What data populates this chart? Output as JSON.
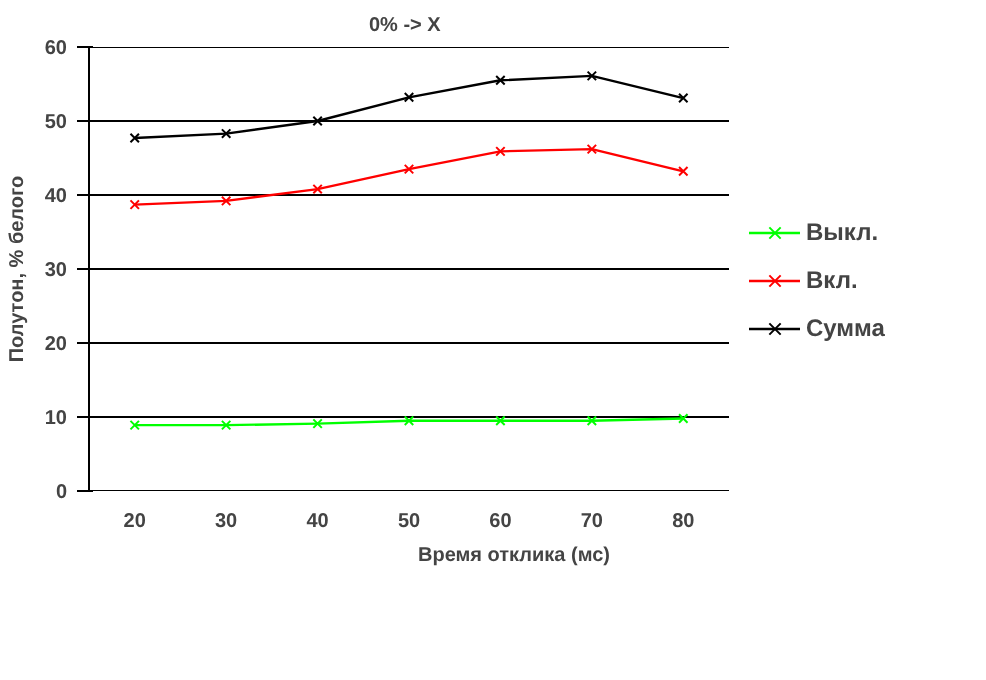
{
  "chart_data": {
    "type": "line",
    "title": "0% -> X",
    "xlabel": "Время отклика (мс)",
    "ylabel": "Полутон, % белого",
    "categories": [
      "20",
      "30",
      "40",
      "50",
      "60",
      "70",
      "80"
    ],
    "series": [
      {
        "name": "Выкл.",
        "color": "#00ff00",
        "values": [
          8.9,
          8.9,
          9.1,
          9.5,
          9.5,
          9.5,
          9.8
        ]
      },
      {
        "name": "Вкл.",
        "color": "#ff0000",
        "values": [
          38.7,
          39.2,
          40.8,
          43.5,
          45.9,
          46.2,
          43.2
        ]
      },
      {
        "name": "Сумма",
        "color": "#000000",
        "values": [
          47.7,
          48.3,
          50.0,
          53.2,
          55.5,
          56.1,
          53.1
        ]
      }
    ],
    "ylim": [
      0,
      60
    ],
    "yticks": [
      0,
      10,
      20,
      30,
      40,
      50,
      60
    ],
    "grid": "y",
    "legend": "right",
    "marker": "cross",
    "line_style": "solid"
  }
}
